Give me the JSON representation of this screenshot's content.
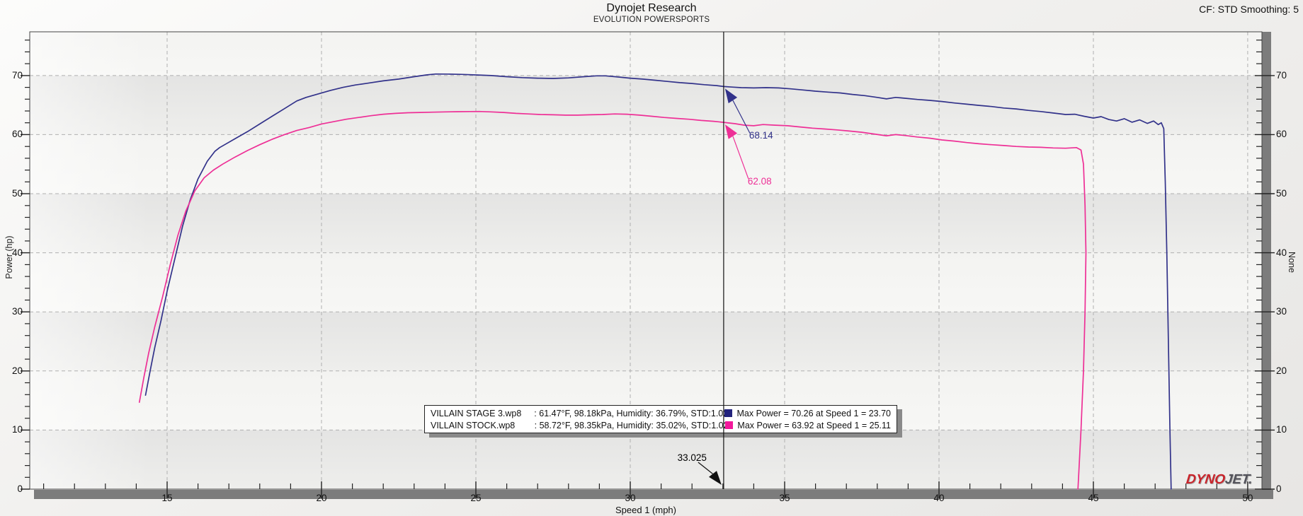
{
  "header": {
    "title": "Dynojet Research",
    "subtitle": "EVOLUTION POWERSPORTS",
    "cf_label": "CF: STD Smoothing: 5"
  },
  "watermark": {
    "dyno": "DYNO",
    "jet": "JET."
  },
  "annotations": {
    "blue_power": "68.14",
    "pink_power": "62.08",
    "cursor_speed": "33.025"
  },
  "legend": {
    "rows": [
      {
        "name": "VILLAIN STAGE 3.wp8",
        "env": ": 61.47°F, 98.18kPa, Humidity: 36.79%, STD:1.02",
        "max": "Max Power = 70.26 at Speed 1 = 23.70",
        "color": "#23237d"
      },
      {
        "name": "VILLAIN STOCK.wp8",
        "env": ": 58.72°F, 98.35kPa, Humidity: 35.02%, STD:1.02",
        "max": "Max Power = 63.92 at Speed 1 = 25.11",
        "color": "#f2189b"
      }
    ]
  },
  "chart_data": {
    "type": "line",
    "title": "Dynojet Research",
    "subtitle": "EVOLUTION POWERSPORTS",
    "xlabel": "Speed 1 (mph)",
    "ylabel": "Power (hp)",
    "y2label": "None",
    "grid": "dashed",
    "legend_position": "bottom-center-inside",
    "x_axis": {
      "min": 10.55,
      "max": 50.46,
      "major_ticks": [
        15,
        20,
        25,
        30,
        35,
        40,
        45,
        50
      ],
      "minor_step": 1,
      "minor_start": 11,
      "minor_end": 50
    },
    "y_axis": {
      "min": 0,
      "max": 77.4,
      "major_ticks": [
        0,
        10,
        20,
        30,
        40,
        50,
        60,
        70
      ],
      "minor_step": 2,
      "minor_start": 2,
      "minor_end": 76
    },
    "cursor": {
      "speed": 33.025,
      "series_values": [
        68.14,
        62.08
      ]
    },
    "series": [
      {
        "name": "VILLAIN STAGE 3.wp8",
        "color": "#32328a",
        "max_power": 70.26,
        "max_power_speed": 23.7,
        "points": [
          [
            14.3,
            15.9
          ],
          [
            14.45,
            20
          ],
          [
            14.6,
            24
          ],
          [
            14.8,
            28.5
          ],
          [
            15,
            33.5
          ],
          [
            15.25,
            39
          ],
          [
            15.5,
            44.5
          ],
          [
            15.75,
            49
          ],
          [
            16,
            52.5
          ],
          [
            16.3,
            55.5
          ],
          [
            16.55,
            57.2
          ],
          [
            16.7,
            57.8
          ],
          [
            16.9,
            58.4
          ],
          [
            17.2,
            59.3
          ],
          [
            17.6,
            60.5
          ],
          [
            18,
            61.8
          ],
          [
            18.4,
            63.1
          ],
          [
            18.8,
            64.4
          ],
          [
            19.2,
            65.7
          ],
          [
            19.5,
            66.3
          ],
          [
            19.9,
            66.9
          ],
          [
            20.3,
            67.5
          ],
          [
            20.7,
            68
          ],
          [
            21.1,
            68.4
          ],
          [
            21.5,
            68.7
          ],
          [
            22,
            69.1
          ],
          [
            22.5,
            69.4
          ],
          [
            23,
            69.8
          ],
          [
            23.4,
            70.1
          ],
          [
            23.7,
            70.26
          ],
          [
            24.1,
            70.25
          ],
          [
            24.5,
            70.2
          ],
          [
            25,
            70.1
          ],
          [
            25.5,
            70
          ],
          [
            26,
            69.8
          ],
          [
            26.5,
            69.65
          ],
          [
            27,
            69.55
          ],
          [
            27.5,
            69.5
          ],
          [
            28,
            69.6
          ],
          [
            28.5,
            69.8
          ],
          [
            28.9,
            69.95
          ],
          [
            29.2,
            69.95
          ],
          [
            29.6,
            69.75
          ],
          [
            30,
            69.55
          ],
          [
            30.4,
            69.4
          ],
          [
            30.8,
            69.2
          ],
          [
            31.2,
            69
          ],
          [
            31.6,
            68.8
          ],
          [
            32,
            68.65
          ],
          [
            32.4,
            68.45
          ],
          [
            32.8,
            68.3
          ],
          [
            33.025,
            68.14
          ],
          [
            33.3,
            68.05
          ],
          [
            33.6,
            67.95
          ],
          [
            34,
            67.9
          ],
          [
            34.4,
            67.95
          ],
          [
            34.8,
            67.9
          ],
          [
            35.2,
            67.75
          ],
          [
            35.6,
            67.55
          ],
          [
            36,
            67.35
          ],
          [
            36.4,
            67.2
          ],
          [
            36.8,
            67.05
          ],
          [
            37.2,
            66.8
          ],
          [
            37.6,
            66.6
          ],
          [
            38,
            66.3
          ],
          [
            38.3,
            66.05
          ],
          [
            38.6,
            66.3
          ],
          [
            38.9,
            66.15
          ],
          [
            39.3,
            65.95
          ],
          [
            39.7,
            65.8
          ],
          [
            40.1,
            65.6
          ],
          [
            40.5,
            65.35
          ],
          [
            40.9,
            65.15
          ],
          [
            41.3,
            64.95
          ],
          [
            41.7,
            64.75
          ],
          [
            42.1,
            64.5
          ],
          [
            42.5,
            64.35
          ],
          [
            42.9,
            64.1
          ],
          [
            43.3,
            63.9
          ],
          [
            43.7,
            63.65
          ],
          [
            44.1,
            63.4
          ],
          [
            44.4,
            63.45
          ],
          [
            44.7,
            63.1
          ],
          [
            45,
            62.8
          ],
          [
            45.25,
            63.05
          ],
          [
            45.5,
            62.55
          ],
          [
            45.75,
            62.3
          ],
          [
            46,
            62.7
          ],
          [
            46.25,
            62.1
          ],
          [
            46.5,
            62.5
          ],
          [
            46.75,
            61.9
          ],
          [
            46.95,
            62.3
          ],
          [
            47.1,
            61.7
          ],
          [
            47.2,
            62
          ],
          [
            47.28,
            61
          ],
          [
            47.33,
            52
          ],
          [
            47.38,
            40
          ],
          [
            47.43,
            25
          ],
          [
            47.48,
            10
          ],
          [
            47.52,
            0
          ]
        ]
      },
      {
        "name": "VILLAIN STOCK.wp8",
        "color": "#ee2f96",
        "max_power": 63.92,
        "max_power_speed": 25.11,
        "points": [
          [
            14.1,
            14.7
          ],
          [
            14.25,
            19
          ],
          [
            14.4,
            23
          ],
          [
            14.6,
            27.5
          ],
          [
            14.85,
            32.5
          ],
          [
            15.1,
            38
          ],
          [
            15.35,
            43
          ],
          [
            15.6,
            47
          ],
          [
            15.9,
            50.5
          ],
          [
            16.2,
            52.7
          ],
          [
            16.5,
            54
          ],
          [
            16.8,
            55
          ],
          [
            17.2,
            56.2
          ],
          [
            17.6,
            57.3
          ],
          [
            18,
            58.3
          ],
          [
            18.4,
            59.2
          ],
          [
            18.8,
            60
          ],
          [
            19.2,
            60.7
          ],
          [
            19.6,
            61.2
          ],
          [
            20,
            61.8
          ],
          [
            20.4,
            62.2
          ],
          [
            20.8,
            62.6
          ],
          [
            21.2,
            62.9
          ],
          [
            21.6,
            63.2
          ],
          [
            22,
            63.45
          ],
          [
            22.4,
            63.6
          ],
          [
            22.8,
            63.7
          ],
          [
            23.2,
            63.75
          ],
          [
            23.6,
            63.8
          ],
          [
            24,
            63.85
          ],
          [
            24.4,
            63.88
          ],
          [
            24.8,
            63.9
          ],
          [
            25.11,
            63.92
          ],
          [
            25.5,
            63.85
          ],
          [
            25.9,
            63.75
          ],
          [
            26.3,
            63.6
          ],
          [
            26.7,
            63.5
          ],
          [
            27.1,
            63.4
          ],
          [
            27.5,
            63.35
          ],
          [
            27.9,
            63.3
          ],
          [
            28.3,
            63.3
          ],
          [
            28.7,
            63.35
          ],
          [
            29.1,
            63.4
          ],
          [
            29.5,
            63.5
          ],
          [
            29.9,
            63.45
          ],
          [
            30.3,
            63.3
          ],
          [
            30.7,
            63.1
          ],
          [
            31.1,
            62.9
          ],
          [
            31.5,
            62.75
          ],
          [
            31.9,
            62.6
          ],
          [
            32.3,
            62.4
          ],
          [
            32.7,
            62.25
          ],
          [
            33.025,
            62.08
          ],
          [
            33.4,
            61.85
          ],
          [
            33.7,
            61.6
          ],
          [
            34,
            61.5
          ],
          [
            34.3,
            61.7
          ],
          [
            34.7,
            61.6
          ],
          [
            35.1,
            61.5
          ],
          [
            35.5,
            61.3
          ],
          [
            35.9,
            61.1
          ],
          [
            36.3,
            60.95
          ],
          [
            36.7,
            60.8
          ],
          [
            37.1,
            60.6
          ],
          [
            37.5,
            60.4
          ],
          [
            37.9,
            60.1
          ],
          [
            38.3,
            59.8
          ],
          [
            38.6,
            60
          ],
          [
            38.9,
            59.85
          ],
          [
            39.3,
            59.6
          ],
          [
            39.7,
            59.4
          ],
          [
            40.1,
            59.1
          ],
          [
            40.5,
            58.9
          ],
          [
            40.9,
            58.65
          ],
          [
            41.3,
            58.45
          ],
          [
            41.7,
            58.3
          ],
          [
            42.1,
            58.15
          ],
          [
            42.5,
            58
          ],
          [
            42.9,
            57.9
          ],
          [
            43.3,
            57.85
          ],
          [
            43.7,
            57.75
          ],
          [
            44.1,
            57.7
          ],
          [
            44.45,
            57.8
          ],
          [
            44.6,
            57.4
          ],
          [
            44.68,
            55
          ],
          [
            44.73,
            48
          ],
          [
            44.76,
            40
          ],
          [
            44.73,
            30
          ],
          [
            44.68,
            20
          ],
          [
            44.6,
            10
          ],
          [
            44.53,
            3
          ],
          [
            44.5,
            0
          ]
        ]
      }
    ]
  },
  "colors": {
    "band_dark_top": "#e4e4e3",
    "band_dark_bottom": "#eeeeec",
    "band_light_top": "#f3f3f1",
    "band_light_bottom": "#f7f7f5",
    "grid": "#b0b0b0",
    "border": "#444444",
    "tick": "#222222",
    "axis_bar": "#7c7c7c",
    "cursor": "#111111",
    "navy": "#32328a",
    "pink": "#ee2f96",
    "logo_red": "#c9242b",
    "logo_gray": "#53535b"
  }
}
